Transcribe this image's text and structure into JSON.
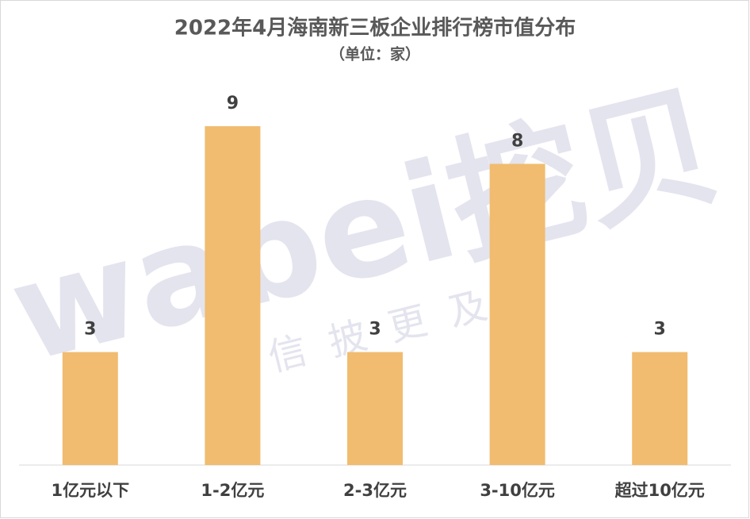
{
  "chart_data": {
    "type": "bar",
    "title": "2022年4月海南新三板企业排行榜市值分布",
    "subtitle": "（单位：家）",
    "categories": [
      "1亿元以下",
      "1-2亿元",
      "2-3亿元",
      "3-10亿元",
      "超过10亿元"
    ],
    "values": [
      3,
      9,
      3,
      8,
      3
    ],
    "color": "#f1bc6f",
    "watermark": {
      "brand": "wabei挖贝",
      "slogan": "让信披更及时"
    }
  }
}
